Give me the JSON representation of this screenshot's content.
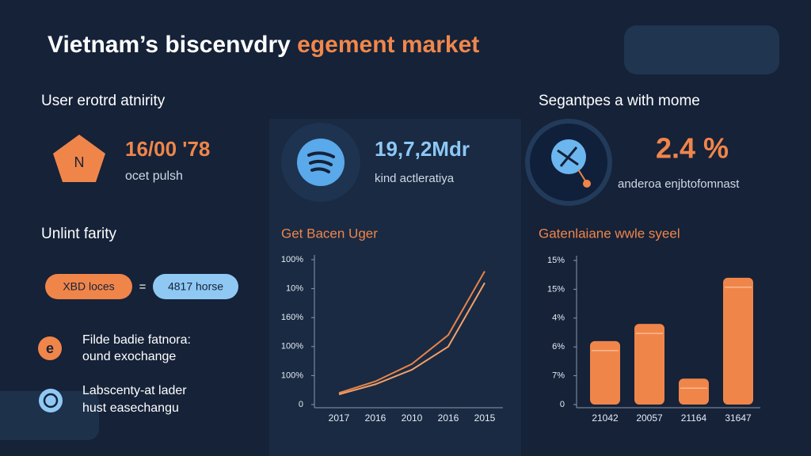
{
  "header": {
    "title": "Vietnam’s biscenvdry",
    "title_highlight": "egement market"
  },
  "left": {
    "heading": "User erotrd atnirity",
    "icon_letter": "N",
    "value": "16/00 '78",
    "label": "ocet pulsh"
  },
  "middle": {
    "value": "19,7,2Mdr",
    "label": "kind actleratiya"
  },
  "right": {
    "heading": "Segantpes a with mome",
    "value": "2.4 %",
    "label": "anderoa enjbtofomnast"
  },
  "lower_left": {
    "heading": "Unlint farity",
    "pill_left": "XBD loces",
    "operator": "=",
    "pill_right": "4817 horse",
    "items": [
      {
        "icon": "e",
        "line1": "Filde badie fatnora:",
        "line2": "ound exochange"
      },
      {
        "line1": "Labscenty-at lader",
        "line2": "hust easechangu"
      }
    ]
  },
  "chart_data": [
    {
      "type": "line",
      "title": "Get Bacen Uger",
      "categories": [
        "2017",
        "2016",
        "2010",
        "2016",
        "2015"
      ],
      "series": [
        {
          "color": "#e8834a",
          "values": [
            0.4,
            0.8,
            1.4,
            2.4,
            4.6
          ]
        },
        {
          "color": "#f3a06a",
          "values": [
            0.35,
            0.7,
            1.2,
            2.0,
            4.2
          ]
        }
      ],
      "ylim": [
        0,
        5
      ],
      "yticks": [
        {
          "value": 0,
          "label": "0"
        },
        {
          "value": 1,
          "label": "100%"
        },
        {
          "value": 2,
          "label": "100%"
        },
        {
          "value": 3,
          "label": "160%"
        },
        {
          "value": 4,
          "label": "10%"
        },
        {
          "value": 5,
          "label": "100%"
        }
      ]
    },
    {
      "type": "bar",
      "title": "Gatenlaiane wwle syeel",
      "categories": [
        "21042",
        "20057",
        "21164",
        "31647"
      ],
      "values": [
        2.2,
        2.8,
        0.9,
        4.4
      ],
      "color": "#f0854a",
      "ylim": [
        0,
        5
      ],
      "yticks": [
        {
          "value": 0,
          "label": "0"
        },
        {
          "value": 1,
          "label": "7%"
        },
        {
          "value": 2,
          "label": "6%"
        },
        {
          "value": 3,
          "label": "4%"
        },
        {
          "value": 4,
          "label": "15%"
        },
        {
          "value": 5,
          "label": "15%"
        }
      ]
    }
  ]
}
